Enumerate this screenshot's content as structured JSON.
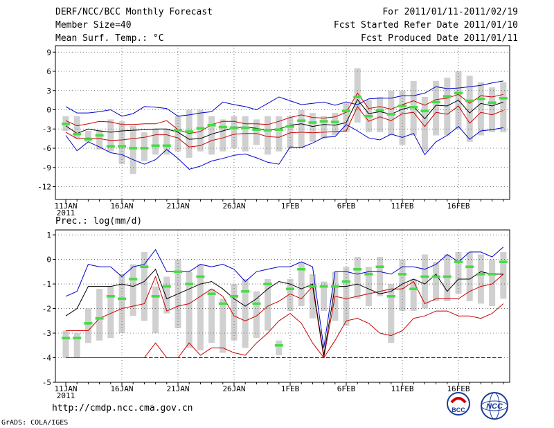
{
  "header": {
    "title": "DERF/NCC/BCC Monthly Forecast",
    "member_size": "Member Size=40",
    "variable": "Mean Surf. Temp.: °C",
    "period": "For 2011/01/11-2011/02/19",
    "started": "Fcst Started Refer Date 2011/01/10",
    "produced": "Fcst Produced Date 2011/01/11"
  },
  "footer": {
    "url": "http://cmdp.ncc.cma.gov.cn",
    "grads": "GrADS: COLA/IGES",
    "logo_bcc": "BCC",
    "logo_ncc": "NCC"
  },
  "colors": {
    "max": "#0000cc",
    "sd": "#cc0000",
    "mean": "#000000",
    "median": "#44dd44",
    "box": "#d0d0d0"
  },
  "chart_data": [
    {
      "type": "box",
      "title": "Mean Surf. Temp.: °C",
      "x_ticks": [
        "11JAN",
        "16JAN",
        "21JAN",
        "26JAN",
        "1FEB",
        "6FEB",
        "11FEB",
        "16FEB"
      ],
      "x_year": "2011",
      "ylim": [
        -14,
        10
      ],
      "y_ticks": [
        -12,
        -9,
        -6,
        -3,
        0,
        3,
        6,
        9
      ],
      "days": 40,
      "max": [
        0.5,
        -0.5,
        -0.5,
        -0.3,
        0,
        -1,
        -0.6,
        0.5,
        0.4,
        0.2,
        -1,
        -0.8,
        -0.5,
        -0.3,
        1.2,
        0.8,
        0.5,
        0,
        1,
        2,
        1.4,
        0.8,
        1,
        1.2,
        0.7,
        1.2,
        0.8,
        1.7,
        1.8,
        1.8,
        2.2,
        2.2,
        2.6,
        3.6,
        3.3,
        3.4,
        3.6,
        3.8,
        4.2,
        4.5
      ],
      "min": [
        -4,
        -6.4,
        -5,
        -5.8,
        -6.7,
        -7,
        -7.8,
        -8.5,
        -7.8,
        -6.2,
        -7.6,
        -9.3,
        -8.8,
        -8,
        -7.6,
        -7.1,
        -6.9,
        -7.5,
        -8.2,
        -8.5,
        -5.8,
        -5.9,
        -5.2,
        -4.3,
        -4.2,
        -2.3,
        -3.3,
        -4.4,
        -4.7,
        -3.8,
        -4.3,
        -3.7,
        -7,
        -5,
        -4,
        -2.6,
        -4.6,
        -3.3,
        -3.1,
        -2.8
      ],
      "sd_hi": [
        -1.7,
        -2.5,
        -2.2,
        -1.8,
        -1.9,
        -2.3,
        -2.3,
        -2.2,
        -2.2,
        -1.7,
        -3.1,
        -3.7,
        -3.4,
        -2.3,
        -1.8,
        -1.8,
        -2.2,
        -2.2,
        -2.3,
        -1.8,
        -1.2,
        -0.8,
        -1.2,
        -1.3,
        -1.1,
        -0.4,
        2.6,
        0.2,
        0.5,
        0.1,
        0.8,
        1.4,
        0.7,
        1.6,
        1.8,
        2.4,
        1,
        2.2,
        2,
        2.4
      ],
      "mean": [
        -2.5,
        -3.7,
        -3,
        -3.3,
        -3.5,
        -3.3,
        -3.2,
        -3.1,
        -3,
        -3,
        -3.5,
        -4.6,
        -4.5,
        -3.8,
        -3.3,
        -2.8,
        -2.7,
        -2.9,
        -3.2,
        -3,
        -2.4,
        -2.2,
        -2.6,
        -2.3,
        -2.4,
        -2,
        1.6,
        -0.6,
        -0.3,
        -0.7,
        0.1,
        0.5,
        -1.4,
        0.7,
        0.6,
        1.5,
        -0.5,
        1,
        0.6,
        1.2
      ],
      "sd_lo": [
        -3.5,
        -4.5,
        -4.4,
        -4.5,
        -4.8,
        -4.7,
        -4.5,
        -4.3,
        -3.9,
        -3.9,
        -4.4,
        -5.8,
        -5.6,
        -4.8,
        -4.4,
        -3.8,
        -3.7,
        -3.7,
        -4.2,
        -4.3,
        -3.6,
        -3.5,
        -3.6,
        -3.5,
        -3.4,
        -3.3,
        0.5,
        -1.8,
        -1.1,
        -1.7,
        -0.6,
        -0.4,
        -2.6,
        -0.4,
        -0.7,
        0.6,
        -2.1,
        -0.4,
        -0.8,
        -0.1
      ],
      "median": [
        -2.2,
        -3.8,
        -4.6,
        -4,
        -5.7,
        -5.7,
        -6,
        -6,
        -5.6,
        -5.6,
        -3.2,
        -3.4,
        -2.9,
        -2.4,
        -2.7,
        -2.8,
        -2.8,
        -3.1,
        -3.2,
        -3.1,
        -2.6,
        -1.7,
        -2,
        -1.8,
        -1.9,
        -0.2,
        2,
        -1,
        -0.1,
        -0.7,
        0.6,
        0.4,
        -0.2,
        1.2,
        2.1,
        2.6,
        1.4,
        1.7,
        1.1,
        1.8
      ],
      "box_hi": [
        -1,
        -1,
        -3.3,
        -3.2,
        -1.5,
        -1.8,
        -2.5,
        -3.5,
        -3,
        -3,
        -1,
        0,
        0,
        -1,
        -1.5,
        -1,
        -1,
        -1.5,
        -1,
        -1,
        -1,
        0,
        -0.5,
        -1,
        -0.5,
        1,
        6.5,
        1.5,
        2,
        3,
        3,
        4.5,
        2,
        4.5,
        5,
        6,
        5.3,
        4.3,
        3.5,
        4.3
      ],
      "box_lo": [
        -3.3,
        -4.5,
        -5,
        -6.2,
        -6.5,
        -8.5,
        -10,
        -8,
        -7,
        -7,
        -6.5,
        -7.5,
        -6.5,
        -7,
        -6.5,
        -6,
        -6.5,
        -5.5,
        -7,
        -6.5,
        -6,
        -6,
        -5,
        -4.5,
        -4,
        -3.5,
        -2,
        -3.5,
        -3.5,
        -4,
        -5.5,
        -4,
        -6.5,
        -4,
        -4,
        -3,
        -5,
        -4,
        -3.5,
        -3.5
      ]
    },
    {
      "type": "box",
      "title": "Prec.: log(mm/d)",
      "x_ticks": [
        "11JAN",
        "16JAN",
        "21JAN",
        "26JAN",
        "1FEB",
        "6FEB",
        "11FEB",
        "16FEB"
      ],
      "x_year": "2011",
      "ylim": [
        -5,
        1.2
      ],
      "y_ticks": [
        -5,
        -4,
        -3,
        -2,
        -1,
        0,
        1
      ],
      "days": 40,
      "baseline": -4,
      "max": [
        -1.5,
        -1.3,
        -0.2,
        -0.3,
        -0.3,
        -0.7,
        -0.3,
        -0.2,
        0.4,
        -0.5,
        -0.5,
        -0.5,
        -0.2,
        -0.3,
        -0.2,
        -0.4,
        -0.9,
        -0.5,
        -0.4,
        -0.3,
        -0.3,
        -0.1,
        -0.3,
        -3.6,
        -0.5,
        -0.5,
        -0.6,
        -0.5,
        -0.5,
        -0.6,
        -0.3,
        -0.3,
        -0.4,
        -0.2,
        0.2,
        -0.1,
        0.3,
        0.3,
        0.1,
        0.5
      ],
      "mean": [
        -2.3,
        -2,
        -1.1,
        -1.1,
        -1.1,
        -1,
        -1.1,
        -0.9,
        -0.4,
        -1.6,
        -1.4,
        -1.2,
        -1,
        -0.9,
        -1.2,
        -1.6,
        -1.9,
        -1.6,
        -1.2,
        -0.9,
        -1,
        -1.2,
        -1,
        -3.9,
        -1.1,
        -1.1,
        -1,
        -1.2,
        -1.4,
        -1.3,
        -1,
        -0.8,
        -1,
        -0.6,
        -1.3,
        -0.8,
        -0.8,
        -0.5,
        -0.6,
        -0.6
      ],
      "sd_hi": [
        -2.9,
        -2.9,
        -2.9,
        -2.4,
        -2.2,
        -2,
        -1.9,
        -1.8,
        -0.7,
        -2.1,
        -1.9,
        -1.8,
        -1.5,
        -1.2,
        -1.5,
        -2.3,
        -2.5,
        -2.3,
        -1.9,
        -1.7,
        -1.4,
        -1.6,
        -1.1,
        -4,
        -1.5,
        -1.6,
        -1.5,
        -1.4,
        -1.3,
        -1.2,
        -1.2,
        -0.9,
        -1.8,
        -1.6,
        -1.6,
        -1.6,
        -1.3,
        -1.1,
        -1,
        -0.6
      ],
      "sd_lo": [
        -4,
        -4,
        -4,
        -4,
        -4,
        -4,
        -4,
        -4,
        -3.4,
        -4,
        -4,
        -3.4,
        -3.9,
        -3.6,
        -3.6,
        -3.8,
        -3.9,
        -3.4,
        -3,
        -2.5,
        -2.2,
        -2.6,
        -3.4,
        -4,
        -3.3,
        -2.5,
        -2.4,
        -2.6,
        -3,
        -3.1,
        -2.9,
        -2.4,
        -2.3,
        -2.1,
        -2.1,
        -2.3,
        -2.3,
        -2.4,
        -2.2,
        -1.8
      ],
      "median": [
        -3.2,
        -3.2,
        -2.6,
        -2.4,
        -1.5,
        -1.6,
        -0.8,
        -0.3,
        -1.5,
        -1.1,
        -0.5,
        -1,
        -0.7,
        -1.4,
        -1.8,
        -1.5,
        -1.3,
        -1.8,
        -1,
        -3.5,
        -1.2,
        -0.4,
        -1.1,
        -1.1,
        -1.1,
        -0.9,
        -0.4,
        -0.6,
        -0.3,
        -1.5,
        -0.6,
        -1.2,
        -0.7,
        -0.7,
        -0.7,
        -0.1,
        -0.3,
        -0.6,
        -0.6,
        -0.1
      ],
      "box_hi": [
        -2.9,
        -3,
        -2,
        -1.2,
        -1.1,
        -0.6,
        -0.2,
        0.3,
        -1.1,
        -0.7,
        0,
        -0.5,
        -0.2,
        -1.2,
        -1.6,
        -1,
        -0.8,
        -1.3,
        -0.8,
        -3.3,
        -0.8,
        -0.1,
        -0.6,
        -0.9,
        -0.5,
        -0.3,
        0.1,
        -0.3,
        0.1,
        -1,
        0,
        -0.8,
        0.2,
        -0.1,
        0.2,
        0.3,
        0.3,
        0.2,
        0,
        0.3
      ],
      "box_lo": [
        -4,
        -4,
        -3.4,
        -3.3,
        -3.2,
        -3,
        -2.3,
        -2.5,
        -3,
        -2.2,
        -2.8,
        -3.6,
        -3.7,
        -3.4,
        -3.8,
        -3.3,
        -3.6,
        -3.2,
        -2.9,
        -3.9,
        -2.1,
        -1.9,
        -2.4,
        -2.1,
        -2.5,
        -2.7,
        -1.6,
        -1.9,
        -1.5,
        -3.4,
        -2.1,
        -2.1,
        -2,
        -1.7,
        -1.7,
        -1.4,
        -1.7,
        -1.8,
        -1.9,
        -1.6
      ]
    }
  ]
}
